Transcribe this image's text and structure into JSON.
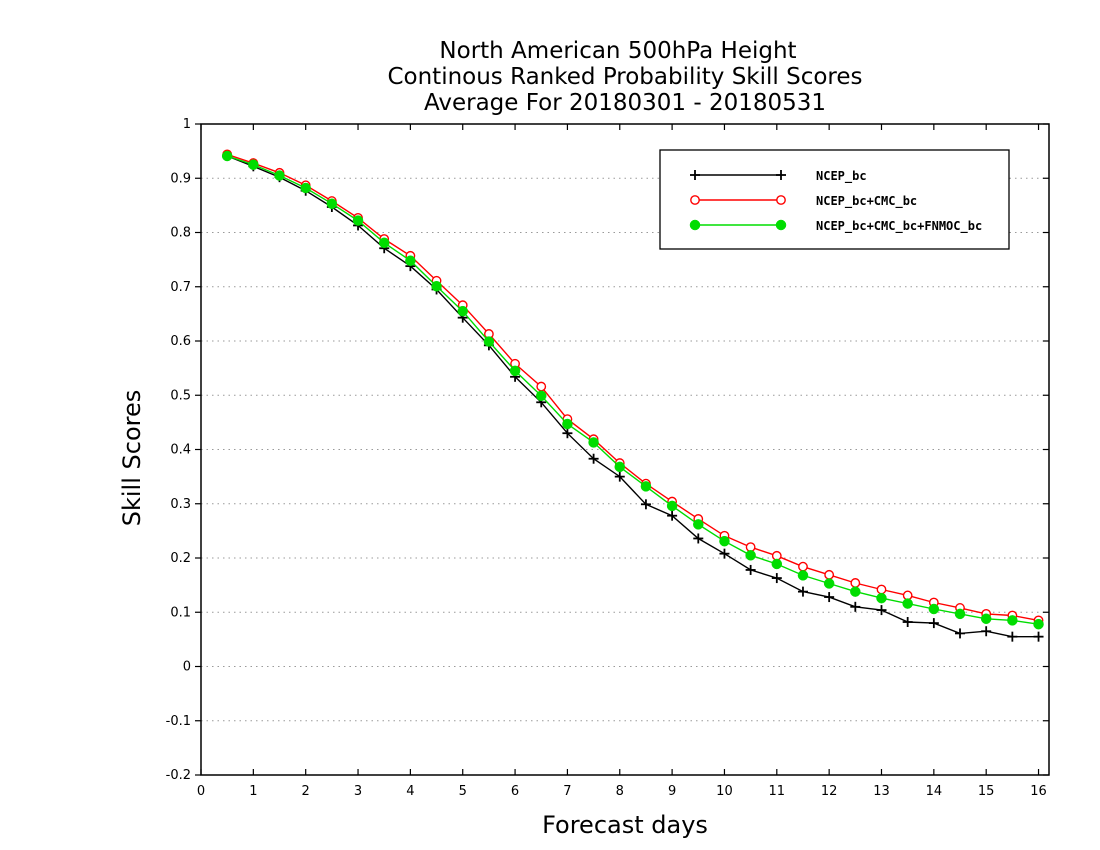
{
  "chart_data": {
    "type": "line",
    "title_lines": [
      "North American 500hPa Height",
      "Continous Ranked Probability Skill Scores",
      "Average For 20180301 - 20180531"
    ],
    "xlabel": "Forecast days",
    "ylabel": "Skill Scores",
    "xlim": [
      0,
      16.2
    ],
    "ylim": [
      -0.2,
      1
    ],
    "xticks": [
      0,
      1,
      2,
      3,
      4,
      5,
      6,
      7,
      8,
      9,
      10,
      11,
      12,
      13,
      14,
      15,
      16
    ],
    "yticks": [
      -0.2,
      -0.1,
      0,
      0.1,
      0.2,
      0.3,
      0.4,
      0.5,
      0.6,
      0.7,
      0.8,
      0.9,
      1
    ],
    "ytick_labels": [
      "-0.2",
      "-0.1",
      "0",
      "0.1",
      "0.2",
      "0.3",
      "0.4",
      "0.5",
      "0.6",
      "0.7",
      "0.8",
      "0.9",
      "1"
    ],
    "grid": "horizontal dotted",
    "legend_position": "top-right",
    "x": [
      0.5,
      1,
      1.5,
      2,
      2.5,
      3,
      3.5,
      4,
      4.5,
      5,
      5.5,
      6,
      6.5,
      7,
      7.5,
      8,
      8.5,
      9,
      9.5,
      10,
      10.5,
      11,
      11.5,
      12,
      12.5,
      13,
      13.5,
      14,
      14.5,
      15,
      15.5,
      16
    ],
    "series": [
      {
        "name": "NCEP_bc",
        "color": "#000000",
        "marker": "plus",
        "values": [
          0.941,
          0.922,
          0.902,
          0.877,
          0.847,
          0.813,
          0.771,
          0.738,
          0.695,
          0.643,
          0.592,
          0.534,
          0.487,
          0.43,
          0.383,
          0.35,
          0.299,
          0.278,
          0.236,
          0.208,
          0.178,
          0.163,
          0.138,
          0.128,
          0.11,
          0.104,
          0.082,
          0.08,
          0.061,
          0.065,
          0.055,
          0.055
        ]
      },
      {
        "name": "NCEP_bc+CMC_bc",
        "color": "#ff0000",
        "marker": "open-circle",
        "values": [
          0.944,
          0.928,
          0.91,
          0.887,
          0.858,
          0.827,
          0.788,
          0.757,
          0.711,
          0.666,
          0.613,
          0.558,
          0.516,
          0.456,
          0.419,
          0.375,
          0.337,
          0.304,
          0.272,
          0.241,
          0.22,
          0.204,
          0.184,
          0.169,
          0.154,
          0.142,
          0.131,
          0.118,
          0.108,
          0.097,
          0.094,
          0.085
        ]
      },
      {
        "name": "NCEP_bc+CMC_bc+FNMOC_bc",
        "color": "#00dd00",
        "marker": "filled-circle",
        "values": [
          0.941,
          0.925,
          0.905,
          0.882,
          0.853,
          0.822,
          0.781,
          0.748,
          0.701,
          0.655,
          0.599,
          0.545,
          0.499,
          0.447,
          0.413,
          0.368,
          0.332,
          0.296,
          0.262,
          0.231,
          0.205,
          0.189,
          0.168,
          0.153,
          0.138,
          0.126,
          0.116,
          0.106,
          0.097,
          0.088,
          0.085,
          0.078
        ]
      }
    ]
  }
}
